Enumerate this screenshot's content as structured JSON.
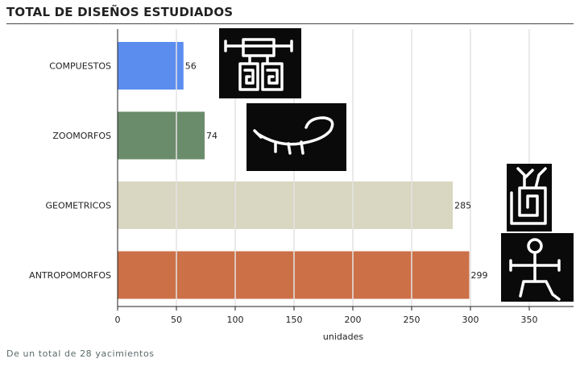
{
  "header": {
    "title": "TOTAL DE DISEÑOS ESTUDIADOS"
  },
  "footnote": "De un total de 28 yacimientos",
  "chart_data": {
    "type": "bar",
    "orientation": "horizontal",
    "title": "",
    "xlabel": "unidades",
    "ylabel": "",
    "xlim": [
      0,
      390
    ],
    "xticks": [
      0,
      50,
      100,
      150,
      200,
      250,
      300,
      350
    ],
    "grid": true,
    "categories": [
      "COMPUESTOS",
      "ZOOMORFOS",
      "GEOMETRICOS",
      "ANTROPOMORFOS"
    ],
    "values": [
      56,
      74,
      285,
      299
    ],
    "colors": [
      "#5b8def",
      "#6b8c6b",
      "#d9d6c1",
      "#cc7048"
    ],
    "thumbnails": [
      "compound-petroglyph",
      "zoomorph-petroglyph",
      "geometric-spiral-petroglyph",
      "anthropomorph-petroglyph"
    ]
  }
}
